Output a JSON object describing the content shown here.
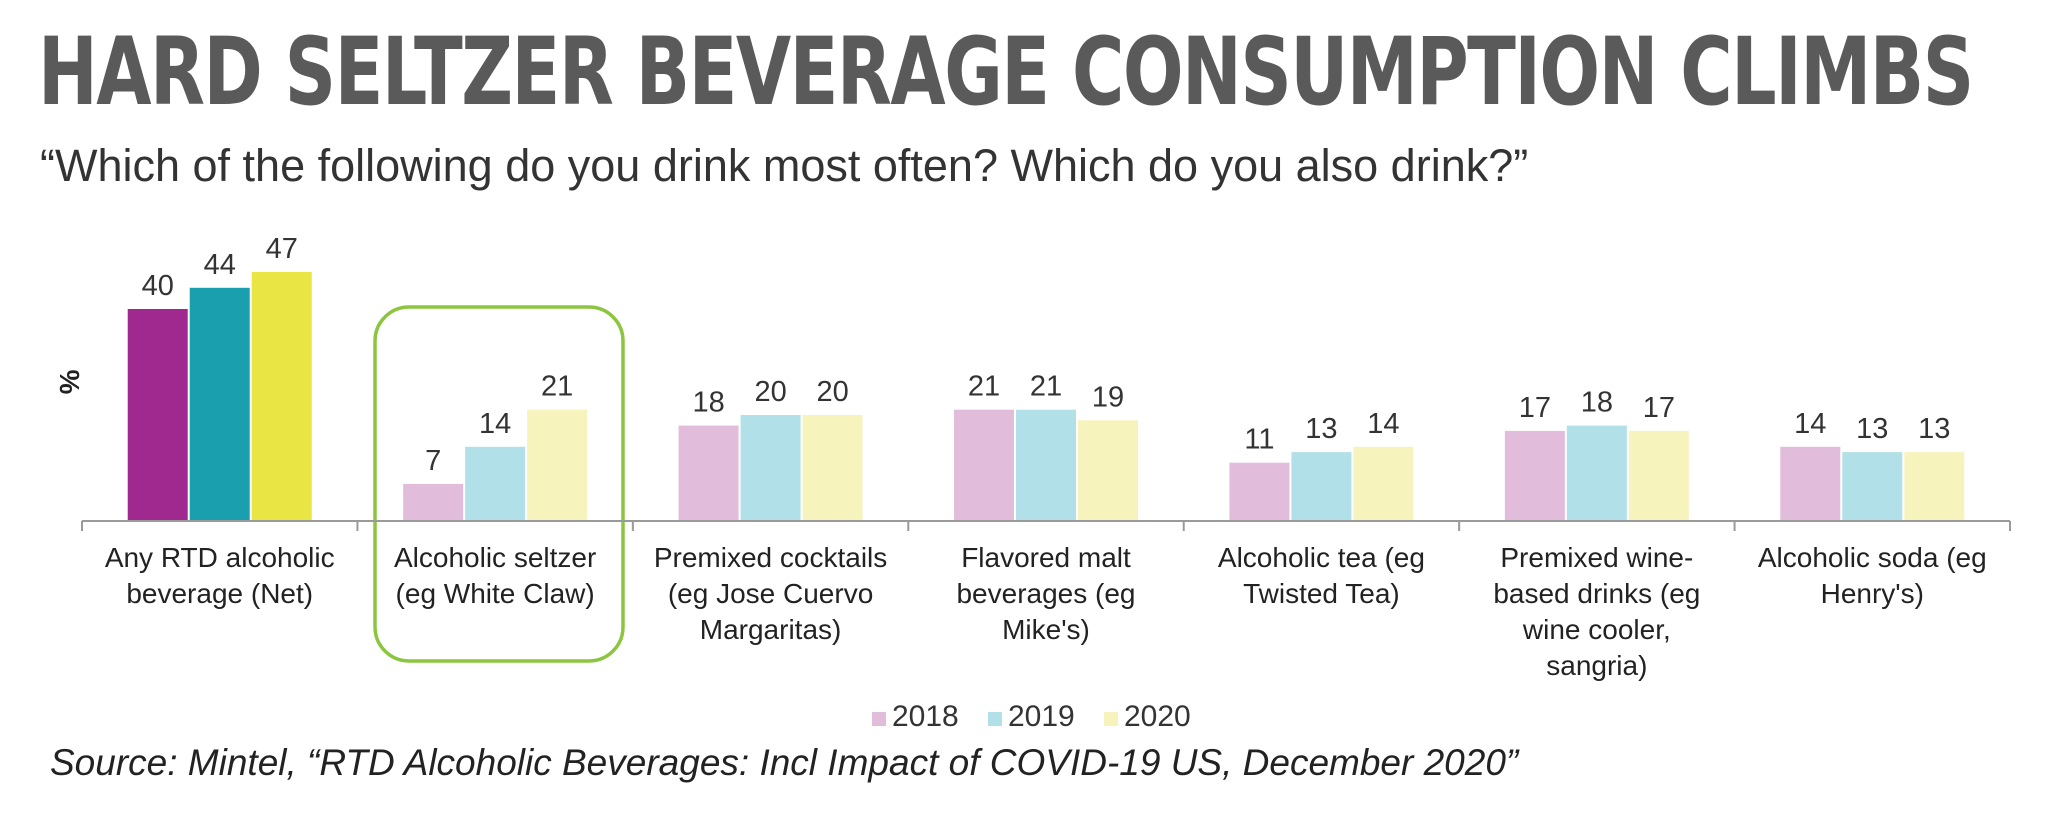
{
  "title": "HARD SELTZER BEVERAGE CONSUMPTION CLIMBS",
  "subtitle": "“Which of the following do you drink most often? Which do you also drink?”",
  "source": "Source:  Mintel, “RTD Alcoholic Beverages: Incl Impact of COVID-19 US, December 2020”",
  "chart_data": {
    "type": "bar",
    "ylabel": "%",
    "ylim": [
      0,
      47
    ],
    "grid": false,
    "legend_position": "bottom-center",
    "highlighted_category": "Alcoholic seltzer (eg White Claw)",
    "highlight_color": "#8cc63f",
    "categories": [
      "Any RTD alcoholic beverage (Net)",
      "Alcoholic seltzer (eg White Claw)",
      "Premixed cocktails (eg Jose Cuervo Margaritas)",
      "Flavored malt beverages (eg Mike's)",
      "Alcoholic tea (eg Twisted Tea)",
      "Premixed wine-based drinks (eg wine cooler, sangria)",
      "Alcoholic soda (eg Henry's)"
    ],
    "category_lines": [
      [
        "Any RTD alcoholic",
        "beverage (Net)"
      ],
      [
        "Alcoholic seltzer",
        "(eg White Claw)"
      ],
      [
        "Premixed cocktails",
        "(eg Jose Cuervo",
        "Margaritas)"
      ],
      [
        "Flavored malt",
        "beverages (eg",
        "Mike's)"
      ],
      [
        "Alcoholic tea (eg",
        "Twisted Tea)"
      ],
      [
        "Premixed wine-",
        "based drinks (eg",
        "wine cooler,",
        "sangria)"
      ],
      [
        "Alcoholic soda (eg",
        "Henry's)"
      ]
    ],
    "series": [
      {
        "name": "2018",
        "values": [
          40,
          7,
          18,
          21,
          11,
          17,
          14
        ]
      },
      {
        "name": "2019",
        "values": [
          44,
          14,
          20,
          21,
          13,
          18,
          13
        ]
      },
      {
        "name": "2020",
        "values": [
          47,
          21,
          20,
          19,
          14,
          17,
          13
        ]
      }
    ],
    "colors": {
      "net": [
        "#a0298f",
        "#1a9fae",
        "#e8e544"
      ],
      "others": [
        "#e2bcdb",
        "#b2e0e8",
        "#f7f3bd"
      ],
      "legend": [
        "#e2bcdb",
        "#b2e0e8",
        "#f7f3bd"
      ]
    }
  }
}
